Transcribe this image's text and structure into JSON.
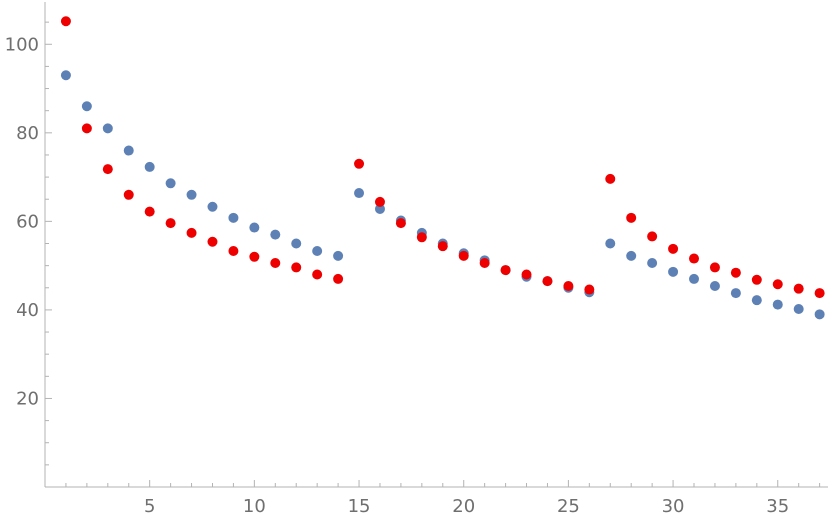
{
  "chart_data": {
    "type": "scatter",
    "title": "",
    "xlabel": "",
    "ylabel": "",
    "xlim": [
      0,
      37.4
    ],
    "ylim": [
      0,
      110
    ],
    "grid": false,
    "legend": "none",
    "x_major_ticks": [
      5,
      10,
      15,
      20,
      25,
      30,
      35
    ],
    "y_major_ticks": [
      20,
      40,
      60,
      80,
      100
    ],
    "x_tick_labels": [
      "5",
      "10",
      "15",
      "20",
      "25",
      "30",
      "35"
    ],
    "y_tick_labels": [
      "20",
      "40",
      "60",
      "80",
      "100"
    ],
    "series": [
      {
        "color": "#5e81b5",
        "x": [
          1,
          2,
          3,
          4,
          5,
          6,
          7,
          8,
          9,
          10,
          11,
          12,
          13,
          14,
          15,
          16,
          17,
          18,
          19,
          20,
          21,
          22,
          23,
          24,
          25,
          26,
          27,
          28,
          29,
          30,
          31,
          32,
          33,
          34,
          35,
          36,
          37
        ],
        "y": [
          93,
          86,
          81,
          76,
          72.3,
          68.6,
          66,
          63.3,
          60.8,
          58.6,
          57,
          55,
          53.3,
          52.2,
          66.4,
          62.8,
          60.2,
          57.4,
          55,
          52.8,
          51.2,
          49,
          47.5,
          46.5,
          45,
          44,
          55,
          52.2,
          50.6,
          48.6,
          47,
          45.4,
          43.8,
          42.2,
          41.2,
          40.2,
          39
        ]
      },
      {
        "color": "#ee0000",
        "x": [
          1,
          2,
          3,
          4,
          5,
          6,
          7,
          8,
          9,
          10,
          11,
          12,
          13,
          14,
          15,
          16,
          17,
          18,
          19,
          20,
          21,
          22,
          23,
          24,
          25,
          26,
          27,
          28,
          29,
          30,
          31,
          32,
          33,
          34,
          35,
          36,
          37
        ],
        "y": [
          105.2,
          81,
          71.8,
          66,
          62.2,
          59.6,
          57.4,
          55.4,
          53.3,
          52,
          50.6,
          49.6,
          48,
          47,
          73,
          64.4,
          59.6,
          56.4,
          54.4,
          52.2,
          50.6,
          49,
          48,
          46.5,
          45.4,
          44.6,
          69.6,
          60.8,
          56.6,
          53.8,
          51.6,
          49.6,
          48.4,
          46.8,
          45.8,
          44.8,
          43.8
        ]
      }
    ]
  }
}
